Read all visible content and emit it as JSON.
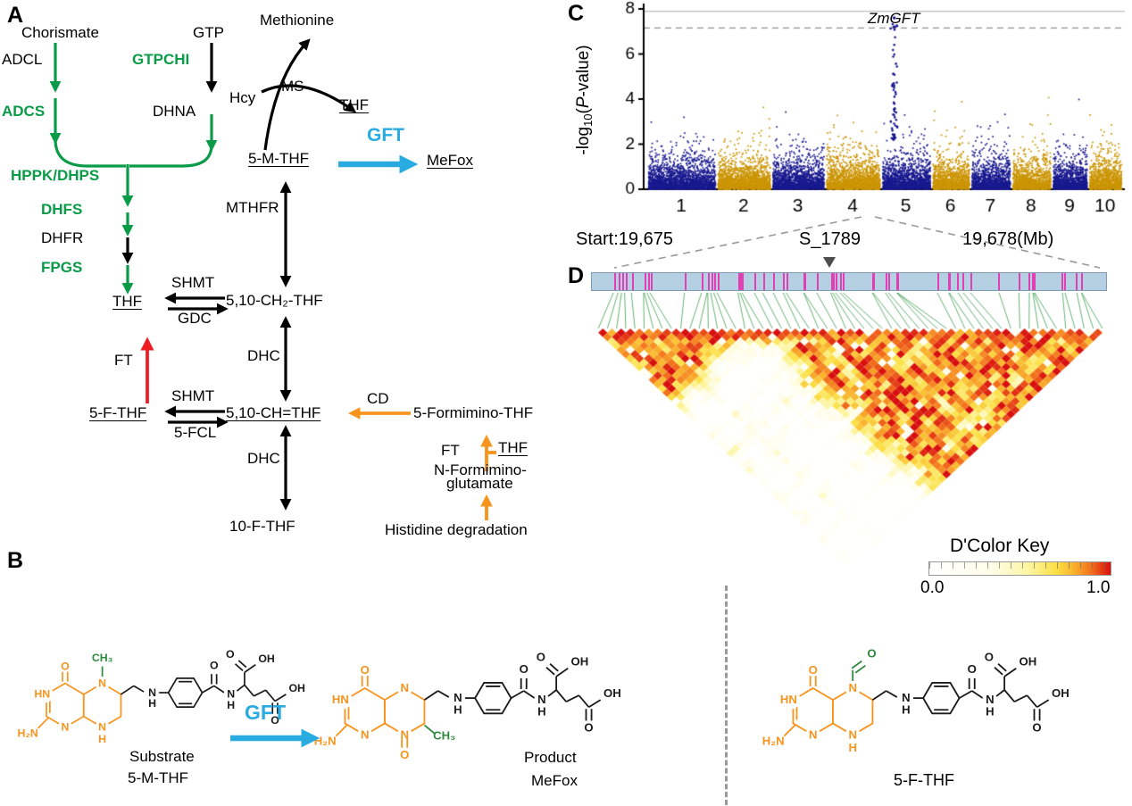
{
  "panelA": {
    "letter": "A",
    "metabolites": {
      "chorismate": "Chorismate",
      "gtp": "GTP",
      "methionine": "Methionine",
      "dhna": "DHNA",
      "hcy": "Hcy",
      "thf_top": "THF",
      "m5thf": "5-M-THF",
      "mefox": "MeFox",
      "thf_mid": "THF",
      "ch2thf": "5,10-CH₂-THF",
      "f5thf": "5-F-THF",
      "chthf": "5,10-CH=THF",
      "formimino_thf": "5-Formimino-THF",
      "thf_right": "THF",
      "n_formimino_line1": "N-Formimino-",
      "n_formimino_line2": "glutamate",
      "f10thf": "10-F-THF",
      "histidine": "Histidine degradation"
    },
    "enzymes": {
      "adcl": "ADCL",
      "gtpchi": "GTPCHI",
      "adcs": "ADCS",
      "ms": "MS",
      "gft": "GFT",
      "hppk_dhps": "HPPK/DHPS",
      "dhfs": "DHFS",
      "dhfr": "DHFR",
      "mthfr": "MTHFR",
      "fpgs": "FPGS",
      "shmt_upper": "SHMT",
      "gdc": "GDC",
      "dhc_upper": "DHC",
      "ft_salvage": "FT",
      "shmt_lower": "SHMT",
      "fcl": "5-FCL",
      "cd": "CD",
      "ft_formimino": "FT",
      "dhc_lower": "DHC"
    },
    "colors": {
      "green": "#0a9b48",
      "black": "#000000",
      "red": "#ee1d23",
      "orange": "#f7941d",
      "blue": "#29abe2"
    }
  },
  "panelB": {
    "letter": "B",
    "gft_label": "GFT",
    "substrate_caption_line1": "Substrate",
    "substrate_caption_line2": "5-M-THF",
    "product_caption_line1": "Product",
    "product_caption_line2": "MeFox",
    "fthf_caption": "5-F-THF",
    "atoms": {
      "h2n": "H₂N",
      "hn": "HN",
      "o": "O",
      "oh": "OH",
      "n": "N",
      "h": "H",
      "ch3": "CH₃"
    }
  },
  "panelC": {
    "letter": "C",
    "annotation": "ZmGFT",
    "ylabel": {
      "prefix": "-log",
      "sub": "10",
      "open": "(",
      "pvar": "P",
      "suffix": "-value)"
    }
  },
  "panelD": {
    "letter": "D",
    "start_label": "Start:19,675",
    "snp_label": "S_1789",
    "end_label": "19,678(Mb)",
    "key_title": "D'Color Key",
    "key_min": "0.0",
    "key_max": "1.0"
  },
  "chart_data": [
    {
      "id": "gwas-manhattan",
      "type": "scatter",
      "subtype": "manhattan",
      "ylabel": "-log10(P-value)",
      "ylim": [
        0,
        8
      ],
      "yticks": [
        0,
        2,
        4,
        6,
        8
      ],
      "categories": [
        "1",
        "2",
        "3",
        "4",
        "5",
        "6",
        "7",
        "8",
        "9",
        "10"
      ],
      "chrom_rel_widths": [
        301,
        237,
        232,
        242,
        217,
        169,
        176,
        175,
        157,
        149
      ],
      "colors": {
        "odd_chrom": "#19198f",
        "even_chrom": "#cb9403"
      },
      "threshold_solid": 7.9,
      "threshold_dashed": 7.15,
      "background_max": 4.4,
      "peak": {
        "chrom": "5",
        "label": "ZmGFT",
        "max": 7.6,
        "rel_pos": 0.27
      },
      "legend": "none",
      "grid": false
    },
    {
      "id": "ld-heatmap",
      "type": "heatmap",
      "measure": "D'",
      "scale_min": 0.0,
      "scale_max": 1.0,
      "n_markers": 56,
      "region_start": "Start:19,675",
      "region_end": "19,678(Mb)",
      "lead_snp": "S_1789",
      "key_title": "D'Color Key",
      "palette": [
        "#ffffff",
        "#fffde8",
        "#fdf5a0",
        "#fbe046",
        "#f9b02c",
        "#f26a1b",
        "#d80f0f"
      ],
      "palette_stops": [
        0,
        0.35,
        0.55,
        0.7,
        0.8,
        0.9,
        1
      ]
    }
  ]
}
